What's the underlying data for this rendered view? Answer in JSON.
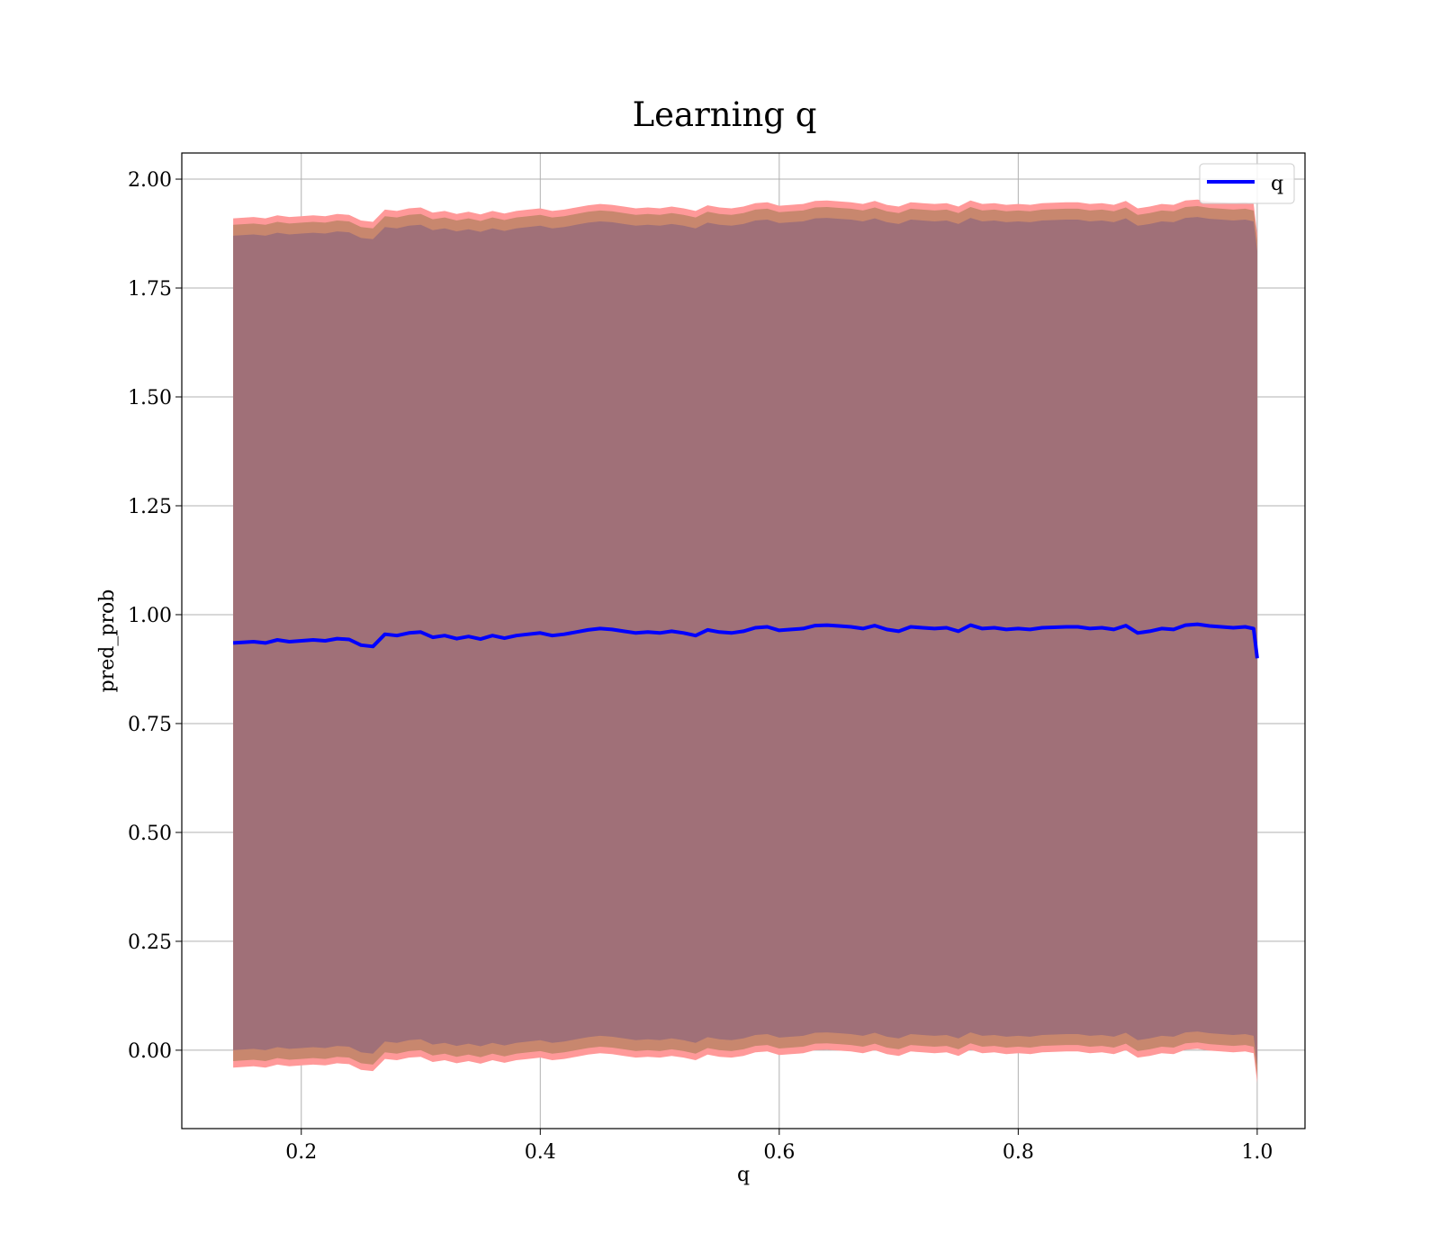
{
  "chart_data": {
    "type": "line",
    "title": "Learning q",
    "xlabel": "q",
    "ylabel": "pred_prob",
    "xlim": [
      0.1,
      1.04
    ],
    "ylim": [
      -0.18,
      2.06
    ],
    "xticks": [
      "0.2",
      "0.4",
      "0.6",
      "0.8",
      "1.0"
    ],
    "yticks": [
      "0.00",
      "0.25",
      "0.50",
      "0.75",
      "1.00",
      "1.25",
      "1.50",
      "1.75",
      "2.00"
    ],
    "grid": true,
    "legend_position": "top-right",
    "colors": {
      "line": "#0000ff",
      "outer_band": "#ff9999",
      "middle_band": "#c8876e",
      "inner_band": "#a07078",
      "grid": "#b0b0b0"
    },
    "series": [
      {
        "name": "q",
        "x": [
          0.143,
          0.16,
          0.17,
          0.18,
          0.19,
          0.2,
          0.21,
          0.22,
          0.23,
          0.24,
          0.25,
          0.26,
          0.27,
          0.28,
          0.29,
          0.3,
          0.31,
          0.32,
          0.33,
          0.34,
          0.35,
          0.36,
          0.37,
          0.38,
          0.39,
          0.4,
          0.41,
          0.42,
          0.43,
          0.44,
          0.45,
          0.46,
          0.47,
          0.48,
          0.49,
          0.5,
          0.51,
          0.52,
          0.53,
          0.54,
          0.55,
          0.56,
          0.57,
          0.58,
          0.59,
          0.6,
          0.61,
          0.62,
          0.63,
          0.64,
          0.65,
          0.66,
          0.67,
          0.68,
          0.69,
          0.7,
          0.71,
          0.72,
          0.73,
          0.74,
          0.75,
          0.76,
          0.77,
          0.78,
          0.79,
          0.8,
          0.81,
          0.82,
          0.83,
          0.84,
          0.85,
          0.86,
          0.87,
          0.88,
          0.89,
          0.9,
          0.91,
          0.92,
          0.93,
          0.94,
          0.95,
          0.96,
          0.97,
          0.98,
          0.99,
          0.997,
          1.0
        ],
        "values": [
          0.935,
          0.938,
          0.935,
          0.942,
          0.938,
          0.94,
          0.942,
          0.94,
          0.945,
          0.943,
          0.93,
          0.927,
          0.955,
          0.952,
          0.958,
          0.96,
          0.948,
          0.952,
          0.945,
          0.95,
          0.944,
          0.952,
          0.946,
          0.952,
          0.955,
          0.958,
          0.952,
          0.955,
          0.96,
          0.965,
          0.968,
          0.966,
          0.962,
          0.958,
          0.96,
          0.958,
          0.962,
          0.958,
          0.952,
          0.965,
          0.96,
          0.958,
          0.962,
          0.97,
          0.972,
          0.964,
          0.966,
          0.968,
          0.975,
          0.976,
          0.974,
          0.972,
          0.968,
          0.975,
          0.966,
          0.962,
          0.972,
          0.97,
          0.968,
          0.97,
          0.962,
          0.976,
          0.968,
          0.97,
          0.966,
          0.968,
          0.966,
          0.97,
          0.971,
          0.972,
          0.972,
          0.968,
          0.97,
          0.966,
          0.975,
          0.958,
          0.962,
          0.968,
          0.966,
          0.976,
          0.978,
          0.974,
          0.972,
          0.97,
          0.972,
          0.968,
          0.9
        ]
      }
    ],
    "band_half_widths": [
      0.935,
      0.96,
      0.975
    ]
  }
}
